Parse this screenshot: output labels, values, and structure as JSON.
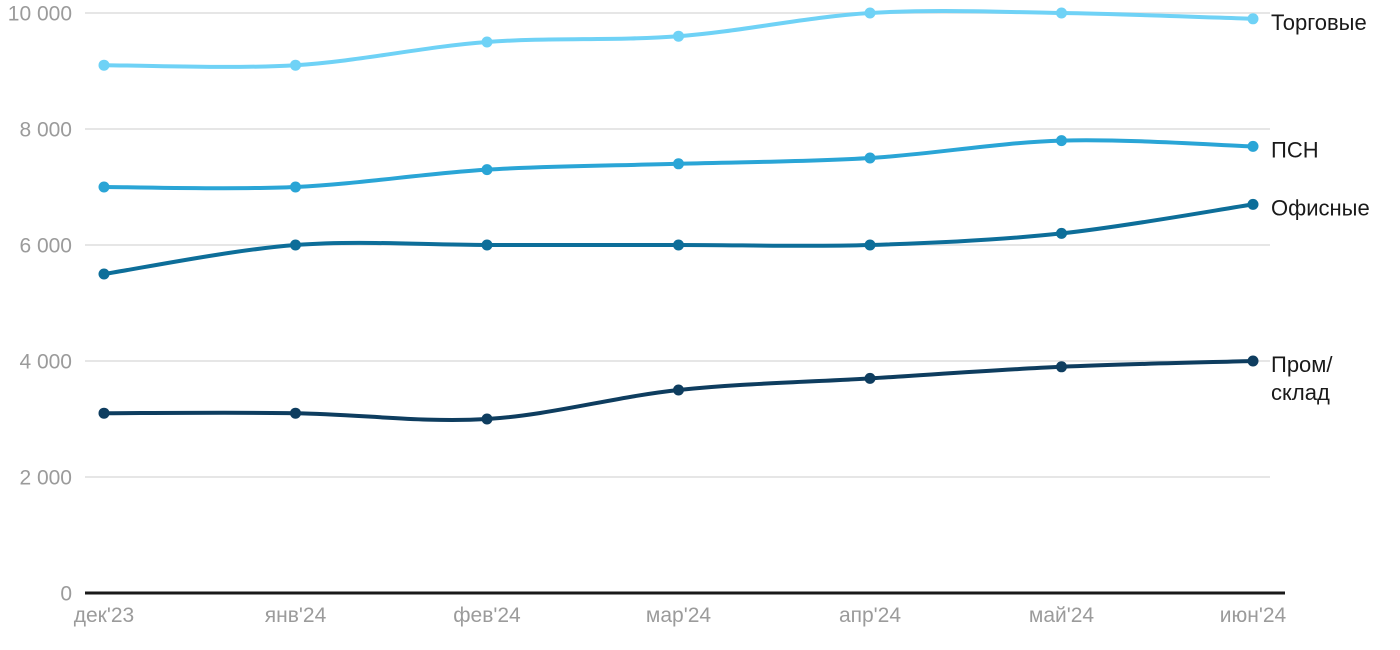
{
  "chart_data": {
    "type": "line",
    "title": "",
    "xlabel": "",
    "ylabel": "",
    "categories": [
      "дек'23",
      "янв'24",
      "фев'24",
      "мар'24",
      "апр'24",
      "май'24",
      "июн'24"
    ],
    "series": [
      {
        "name": "Торговые",
        "key": "torgovye",
        "color": "#6fd2f6",
        "label_lines": [
          "Торговые"
        ],
        "values": [
          9100,
          9100,
          9500,
          9600,
          10000,
          10000,
          9900
        ]
      },
      {
        "name": "ПСН",
        "key": "psn",
        "color": "#2aa5d6",
        "label_lines": [
          "ПСН"
        ],
        "values": [
          7000,
          7000,
          7300,
          7400,
          7500,
          7800,
          7700
        ]
      },
      {
        "name": "Офисные",
        "key": "ofisnye",
        "color": "#0d6e99",
        "label_lines": [
          "Офисные"
        ],
        "values": [
          5500,
          6000,
          6000,
          6000,
          6000,
          6200,
          6700
        ]
      },
      {
        "name": "Пром/склад",
        "key": "prom-sklad",
        "color": "#0e3d5f",
        "label_lines": [
          "Пром/",
          "склад"
        ],
        "values": [
          3100,
          3100,
          3000,
          3500,
          3700,
          3900,
          4000
        ]
      }
    ],
    "y_ticks": [
      {
        "value": 0,
        "label": "0"
      },
      {
        "value": 2000,
        "label": "2 000"
      },
      {
        "value": 4000,
        "label": "4 000"
      },
      {
        "value": 6000,
        "label": "6 000"
      },
      {
        "value": 8000,
        "label": "8 000"
      },
      {
        "value": 10000,
        "label": "10 000"
      }
    ],
    "ylim": [
      0,
      10000
    ],
    "grid": true,
    "legend_position": "right-end-labels"
  },
  "colors": {
    "background": "#ffffff",
    "gridline": "#e6e6e6",
    "axis_line": "#1a1a1a",
    "tick_text": "#9b9b9b",
    "series_label_text": "#1a1a1a"
  }
}
